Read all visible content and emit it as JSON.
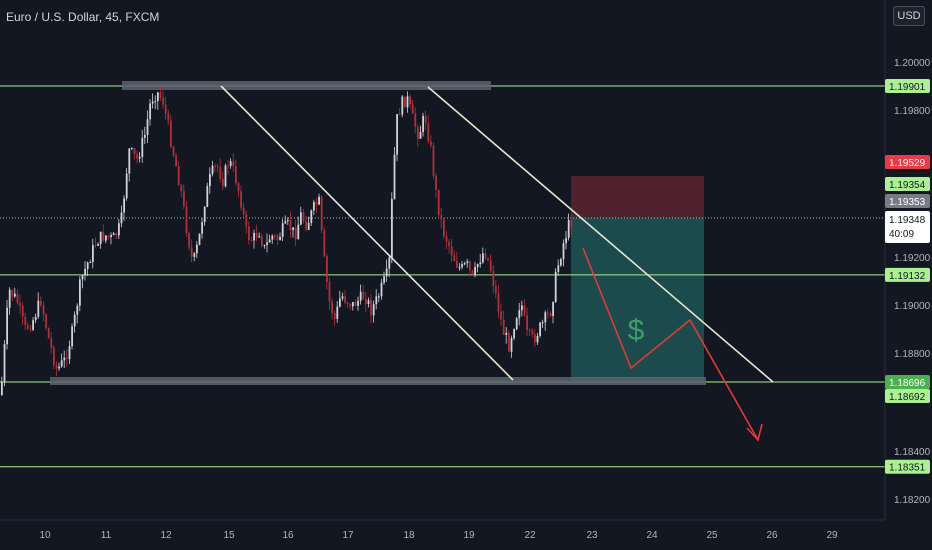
{
  "header": {
    "title": "Euro / U.S. Dollar, 45, FXCM",
    "currency": "USD"
  },
  "chart_data": {
    "type": "candlestick",
    "symbol": "Euro / U.S. Dollar",
    "interval": "45",
    "source": "FXCM",
    "y_ticks": [
      "1.20000",
      "1.19800",
      "1.19200",
      "1.19000",
      "1.18800",
      "1.18400",
      "1.18200"
    ],
    "x_ticks": [
      "10",
      "11",
      "12",
      "15",
      "16",
      "17",
      "18",
      "19",
      "22",
      "23",
      "24",
      "25",
      "26",
      "29"
    ],
    "horizontal_levels": [
      {
        "label": "1.19901",
        "value": 1.19901
      },
      {
        "label": "1.19132",
        "value": 1.19132
      },
      {
        "label": "1.18696",
        "value": 1.18696
      },
      {
        "label": "1.18351",
        "value": 1.18351
      }
    ],
    "price_tags": [
      {
        "label": "1.19529",
        "kind": "stop"
      },
      {
        "label": "1.19354",
        "kind": "entry"
      },
      {
        "label": "1.19353",
        "kind": "bid"
      },
      {
        "label": "1.19348",
        "kind": "last"
      },
      {
        "label": "40:09",
        "kind": "countdown"
      },
      {
        "label": "1.18692",
        "kind": "target"
      }
    ],
    "annotation_symbol": "$",
    "colors": {
      "background": "#131722",
      "bull": "#d1d4dc",
      "bear": "#b2303a",
      "level": "#a9f28f",
      "trendline": "#e8e6d0",
      "range_band": "#5d6470",
      "profit_zone": "#1d5554",
      "loss_zone": "#5c2530",
      "arrow": "#e53935",
      "tag_red": "#f23645",
      "tag_gray": "#787b86"
    }
  }
}
